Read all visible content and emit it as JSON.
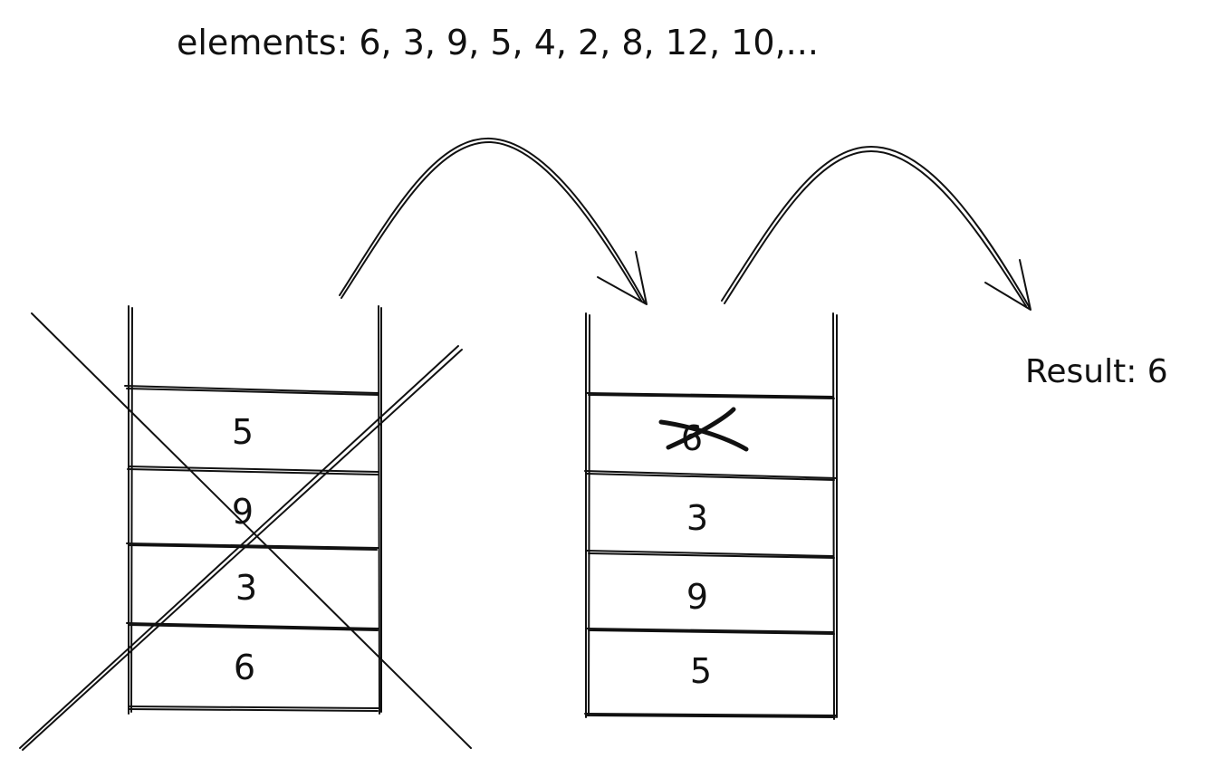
{
  "header": {
    "elements_text": "elements: 6, 3, 9, 5, 4, 2, 8, 12, 10,..."
  },
  "stacks": [
    {
      "id": "stack-old",
      "crossed_out": true,
      "cells_top_to_bottom": [
        "5",
        "9",
        "3",
        "6"
      ]
    },
    {
      "id": "stack-new",
      "crossed_out": false,
      "cells_top_to_bottom": [
        "6",
        "3",
        "9",
        "5"
      ],
      "struck_cell_index": 0
    }
  ],
  "result": {
    "text": "Result: 6"
  },
  "colors": {
    "ink": "#111111",
    "background": "#ffffff"
  }
}
